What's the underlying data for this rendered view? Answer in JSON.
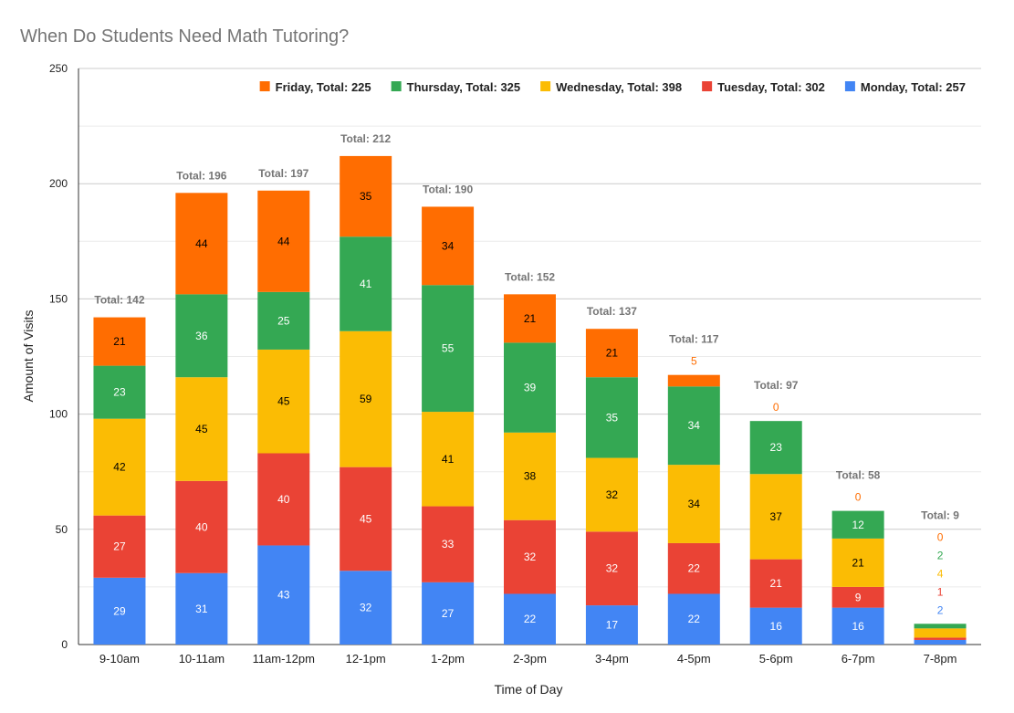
{
  "chart_data": {
    "type": "bar",
    "stacked": true,
    "title": "When Do Students Need Math Tutoring?",
    "xlabel": "Time of Day",
    "ylabel": "Amount of Visits",
    "ylim": [
      0,
      250
    ],
    "yticks": [
      0,
      50,
      100,
      150,
      200,
      250
    ],
    "minor_grid_step": 25,
    "grid": true,
    "legend_position": "top-right",
    "categories": [
      "9-10am",
      "10-11am",
      "11am-12pm",
      "12-1pm",
      "1-2pm",
      "2-3pm",
      "3-4pm",
      "4-5pm",
      "5-6pm",
      "6-7pm",
      "7-8pm"
    ],
    "series": [
      {
        "name": "Monday",
        "legend": "Monday, Total: 257",
        "color": "#4285F4",
        "values": [
          29,
          31,
          43,
          32,
          27,
          22,
          17,
          22,
          16,
          16,
          2
        ]
      },
      {
        "name": "Tuesday",
        "legend": "Tuesday, Total: 302",
        "color": "#EA4335",
        "values": [
          27,
          40,
          40,
          45,
          33,
          32,
          32,
          22,
          21,
          9,
          1
        ]
      },
      {
        "name": "Wednesday",
        "legend": "Wednesday, Total: 398",
        "color": "#FBBC04",
        "values": [
          42,
          45,
          45,
          59,
          41,
          38,
          32,
          34,
          37,
          21,
          4
        ]
      },
      {
        "name": "Thursday",
        "legend": "Thursday, Total: 325",
        "color": "#34A853",
        "values": [
          23,
          36,
          25,
          41,
          55,
          39,
          35,
          34,
          23,
          12,
          2
        ]
      },
      {
        "name": "Friday",
        "legend": "Friday, Total: 225",
        "color": "#FF6D01",
        "values": [
          21,
          44,
          44,
          35,
          34,
          21,
          21,
          5,
          0,
          0,
          0
        ]
      }
    ],
    "totals": [
      "Total: 142",
      "Total: 196",
      "Total: 197",
      "Total: 212",
      "Total: 190",
      "Total: 152",
      "Total: 137",
      "Total: 117",
      "Total: 97",
      "Total: 58",
      "Total: 9"
    ]
  }
}
